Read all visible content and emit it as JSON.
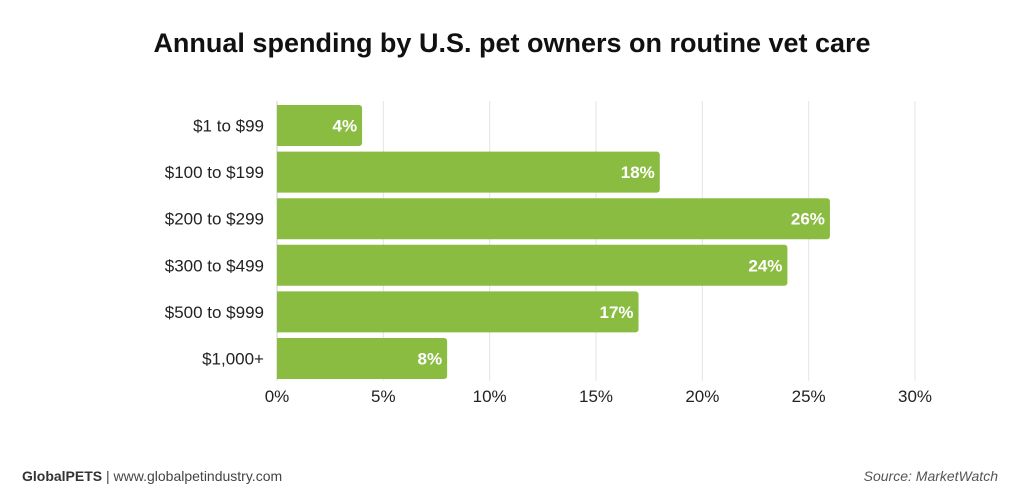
{
  "chart_data": {
    "type": "bar",
    "orientation": "horizontal",
    "title": "Annual spending by U.S. pet owners on routine vet care",
    "categories": [
      "$1 to $99",
      "$100 to $199",
      "$200 to $299",
      "$300 to $499",
      "$500 to $999",
      "$1,000+"
    ],
    "values": [
      4,
      18,
      26,
      24,
      17,
      8
    ],
    "data_labels": [
      "4%",
      "18%",
      "26%",
      "24%",
      "17%",
      "8%"
    ],
    "xlim": [
      0,
      30
    ],
    "x_ticks": [
      0,
      5,
      10,
      15,
      20,
      25,
      30
    ],
    "x_tick_labels": [
      "0%",
      "5%",
      "10%",
      "15%",
      "20%",
      "25%",
      "30%"
    ],
    "grid": "vertical",
    "bar_color": "#8bbc42"
  },
  "footer": {
    "brand": "GlobalPETS",
    "separator": "|",
    "url": "www.globalpetindustry.com",
    "source": "Source: MarketWatch"
  }
}
